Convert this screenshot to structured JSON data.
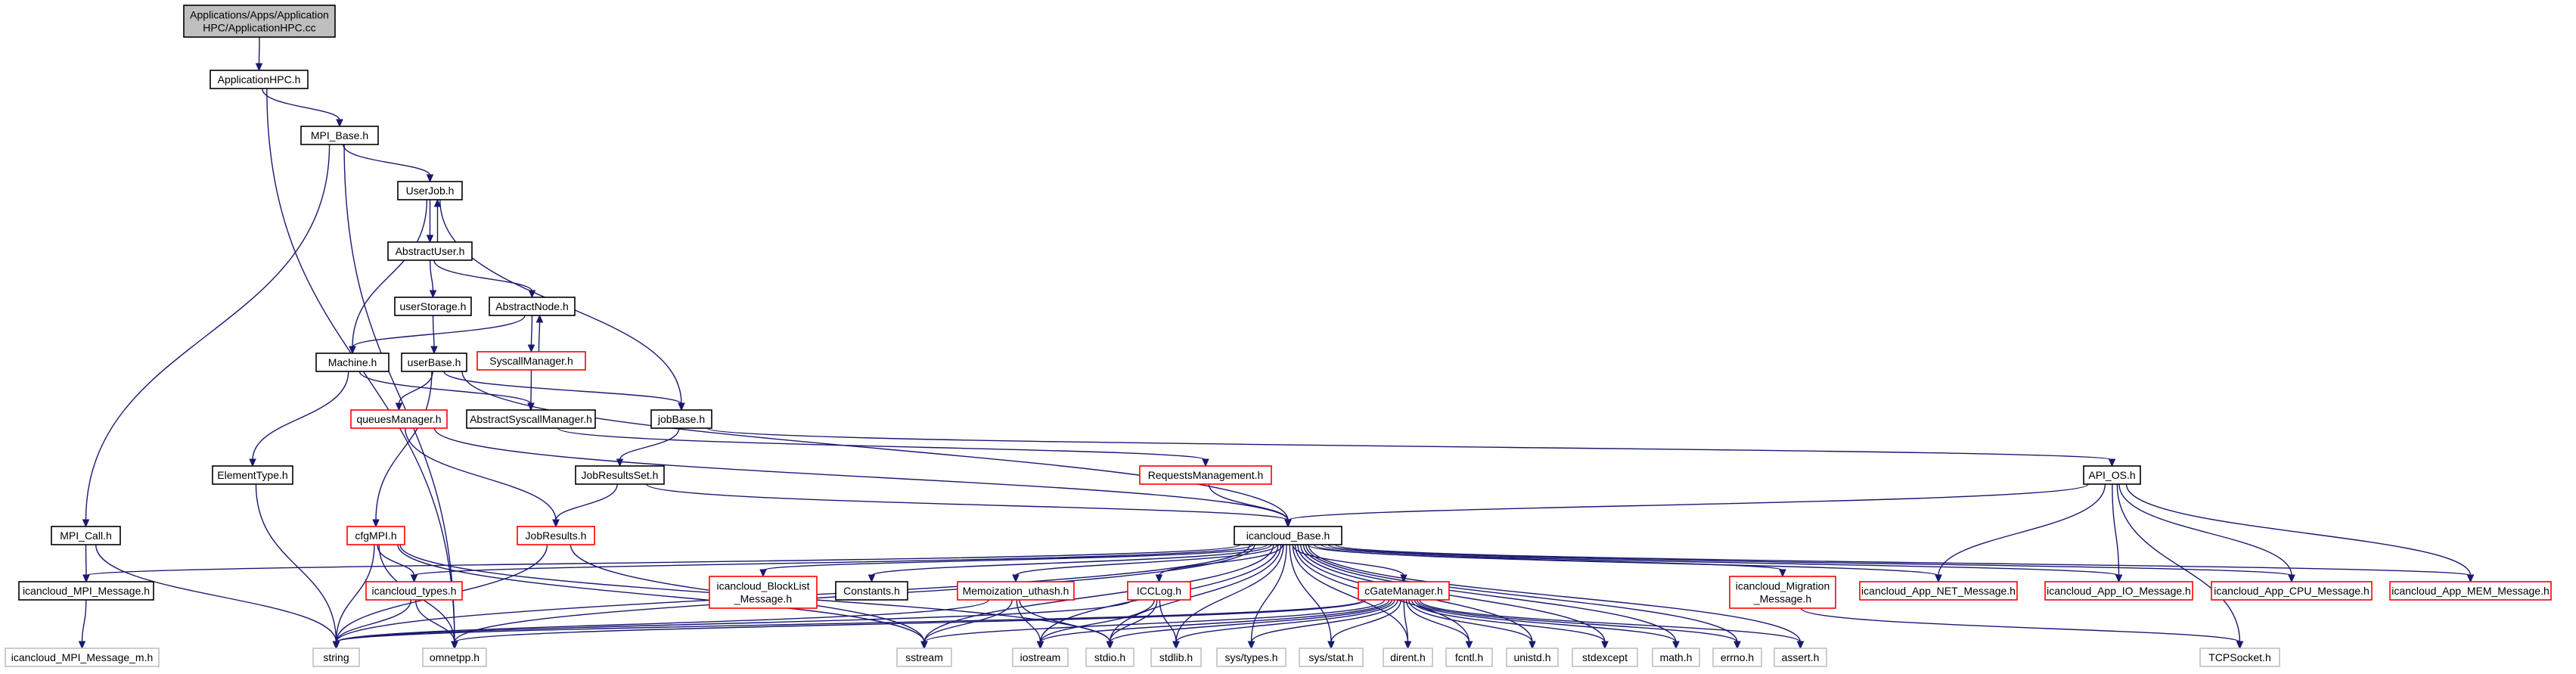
{
  "diagram": {
    "colors": {
      "edge": "#191970",
      "border_normal": "#000000",
      "border_truncated": "#ff0000",
      "border_leaf": "#bfbfbf",
      "fill_root": "#bfbfbf",
      "fill_normal": "#ffffff"
    },
    "nodes": [
      {
        "id": "root",
        "lines": [
          "Applications/Apps/Application",
          "HPC/ApplicationHPC.cc"
        ],
        "kind": "root"
      },
      {
        "id": "app_hpc",
        "lines": [
          "ApplicationHPC.h"
        ],
        "kind": "normal"
      },
      {
        "id": "mpi_base",
        "lines": [
          "MPI_Base.h"
        ],
        "kind": "normal"
      },
      {
        "id": "userjob",
        "lines": [
          "UserJob.h"
        ],
        "kind": "normal"
      },
      {
        "id": "abstractuser",
        "lines": [
          "AbstractUser.h"
        ],
        "kind": "normal"
      },
      {
        "id": "userstorage",
        "lines": [
          "userStorage.h"
        ],
        "kind": "normal"
      },
      {
        "id": "abstractnode",
        "lines": [
          "AbstractNode.h"
        ],
        "kind": "normal"
      },
      {
        "id": "syscallmanager",
        "lines": [
          "SyscallManager.h"
        ],
        "kind": "truncated"
      },
      {
        "id": "machine",
        "lines": [
          "Machine.h"
        ],
        "kind": "normal"
      },
      {
        "id": "userbase",
        "lines": [
          "userBase.h"
        ],
        "kind": "normal"
      },
      {
        "id": "queuesmanager",
        "lines": [
          "queuesManager.h"
        ],
        "kind": "truncated"
      },
      {
        "id": "abstractsyscall",
        "lines": [
          "AbstractSyscallManager.h"
        ],
        "kind": "normal"
      },
      {
        "id": "jobbase",
        "lines": [
          "jobBase.h"
        ],
        "kind": "normal"
      },
      {
        "id": "elementtype",
        "lines": [
          "ElementType.h"
        ],
        "kind": "normal"
      },
      {
        "id": "jobresultsset",
        "lines": [
          "JobResultsSet.h"
        ],
        "kind": "normal"
      },
      {
        "id": "requestsmgmt",
        "lines": [
          "RequestsManagement.h"
        ],
        "kind": "truncated"
      },
      {
        "id": "api_os",
        "lines": [
          "API_OS.h"
        ],
        "kind": "normal"
      },
      {
        "id": "mpi_call",
        "lines": [
          "MPI_Call.h"
        ],
        "kind": "normal"
      },
      {
        "id": "cfgmpi",
        "lines": [
          "cfgMPI.h"
        ],
        "kind": "truncated"
      },
      {
        "id": "jobresults",
        "lines": [
          "JobResults.h"
        ],
        "kind": "truncated"
      },
      {
        "id": "icancloud_base",
        "lines": [
          "icancloud_Base.h"
        ],
        "kind": "normal"
      },
      {
        "id": "mpi_message",
        "lines": [
          "icancloud_MPI_Message.h"
        ],
        "kind": "normal"
      },
      {
        "id": "icancloud_types",
        "lines": [
          "icancloud_types.h"
        ],
        "kind": "truncated"
      },
      {
        "id": "blocklist",
        "lines": [
          "icancloud_BlockList",
          "_Message.h"
        ],
        "kind": "truncated"
      },
      {
        "id": "constants",
        "lines": [
          "Constants.h"
        ],
        "kind": "normal"
      },
      {
        "id": "memoization",
        "lines": [
          "Memoization_uthash.h"
        ],
        "kind": "truncated"
      },
      {
        "id": "icclog",
        "lines": [
          "ICCLog.h"
        ],
        "kind": "truncated"
      },
      {
        "id": "cgatemanager",
        "lines": [
          "cGateManager.h"
        ],
        "kind": "truncated"
      },
      {
        "id": "migration",
        "lines": [
          "icancloud_Migration",
          "_Message.h"
        ],
        "kind": "truncated"
      },
      {
        "id": "net_msg",
        "lines": [
          "icancloud_App_NET_Message.h"
        ],
        "kind": "truncated"
      },
      {
        "id": "io_msg",
        "lines": [
          "icancloud_App_IO_Message.h"
        ],
        "kind": "truncated"
      },
      {
        "id": "cpu_msg",
        "lines": [
          "icancloud_App_CPU_Message.h"
        ],
        "kind": "truncated"
      },
      {
        "id": "mem_msg",
        "lines": [
          "icancloud_App_MEM_Message.h"
        ],
        "kind": "truncated"
      },
      {
        "id": "mpi_message_m",
        "lines": [
          "icancloud_MPI_Message_m.h"
        ],
        "kind": "leaf"
      },
      {
        "id": "string",
        "lines": [
          "string"
        ],
        "kind": "leaf"
      },
      {
        "id": "omnetpp",
        "lines": [
          "omnetpp.h"
        ],
        "kind": "leaf"
      },
      {
        "id": "sstream",
        "lines": [
          "sstream"
        ],
        "kind": "leaf"
      },
      {
        "id": "iostream",
        "lines": [
          "iostream"
        ],
        "kind": "leaf"
      },
      {
        "id": "stdio",
        "lines": [
          "stdio.h"
        ],
        "kind": "leaf"
      },
      {
        "id": "stdlib",
        "lines": [
          "stdlib.h"
        ],
        "kind": "leaf"
      },
      {
        "id": "systypes",
        "lines": [
          "sys/types.h"
        ],
        "kind": "leaf"
      },
      {
        "id": "sysstat",
        "lines": [
          "sys/stat.h"
        ],
        "kind": "leaf"
      },
      {
        "id": "dirent",
        "lines": [
          "dirent.h"
        ],
        "kind": "leaf"
      },
      {
        "id": "fcntl",
        "lines": [
          "fcntl.h"
        ],
        "kind": "leaf"
      },
      {
        "id": "unistd",
        "lines": [
          "unistd.h"
        ],
        "kind": "leaf"
      },
      {
        "id": "stdexcept",
        "lines": [
          "stdexcept"
        ],
        "kind": "leaf"
      },
      {
        "id": "math",
        "lines": [
          "math.h"
        ],
        "kind": "leaf"
      },
      {
        "id": "errno",
        "lines": [
          "errno.h"
        ],
        "kind": "leaf"
      },
      {
        "id": "assert",
        "lines": [
          "assert.h"
        ],
        "kind": "leaf"
      },
      {
        "id": "tcpsocket",
        "lines": [
          "TCPSocket.h"
        ],
        "kind": "leaf"
      }
    ],
    "edges": [
      [
        "root",
        "app_hpc"
      ],
      [
        "app_hpc",
        "mpi_base"
      ],
      [
        "app_hpc",
        "omnetpp"
      ],
      [
        "mpi_base",
        "userjob"
      ],
      [
        "mpi_base",
        "mpi_call"
      ],
      [
        "mpi_base",
        "omnetpp"
      ],
      [
        "userjob",
        "abstractuser"
      ],
      [
        "abstractuser",
        "userjob"
      ],
      [
        "userjob",
        "machine"
      ],
      [
        "userjob",
        "jobbase"
      ],
      [
        "abstractuser",
        "userstorage"
      ],
      [
        "abstractuser",
        "abstractnode"
      ],
      [
        "abstractnode",
        "syscallmanager"
      ],
      [
        "syscallmanager",
        "abstractnode"
      ],
      [
        "abstractnode",
        "machine"
      ],
      [
        "syscallmanager",
        "abstractsyscall"
      ],
      [
        "userstorage",
        "userbase"
      ],
      [
        "userbase",
        "queuesmanager"
      ],
      [
        "userbase",
        "jobbase"
      ],
      [
        "userbase",
        "cfgmpi"
      ],
      [
        "userbase",
        "icancloud_base"
      ],
      [
        "machine",
        "elementtype"
      ],
      [
        "machine",
        "abstractsyscall"
      ],
      [
        "abstractsyscall",
        "requestsmgmt"
      ],
      [
        "jobbase",
        "jobresultsset"
      ],
      [
        "jobbase",
        "api_os"
      ],
      [
        "queuesmanager",
        "jobresults"
      ],
      [
        "queuesmanager",
        "icancloud_base"
      ],
      [
        "elementtype",
        "string"
      ],
      [
        "jobresultsset",
        "jobresults"
      ],
      [
        "jobresultsset",
        "icancloud_base"
      ],
      [
        "requestsmgmt",
        "icancloud_base"
      ],
      [
        "api_os",
        "icancloud_base"
      ],
      [
        "api_os",
        "net_msg"
      ],
      [
        "api_os",
        "io_msg"
      ],
      [
        "api_os",
        "cpu_msg"
      ],
      [
        "api_os",
        "mem_msg"
      ],
      [
        "api_os",
        "tcpsocket"
      ],
      [
        "mpi_call",
        "mpi_message"
      ],
      [
        "mpi_call",
        "string"
      ],
      [
        "mpi_message",
        "mpi_message_m"
      ],
      [
        "cfgmpi",
        "icancloud_types"
      ],
      [
        "cfgmpi",
        "string"
      ],
      [
        "cfgmpi",
        "omnetpp"
      ],
      [
        "cfgmpi",
        "sstream"
      ],
      [
        "cfgmpi",
        "stdio"
      ],
      [
        "jobresults",
        "string"
      ],
      [
        "jobresults",
        "sstream"
      ],
      [
        "icancloud_base",
        "mpi_message"
      ],
      [
        "icancloud_base",
        "icancloud_types"
      ],
      [
        "icancloud_base",
        "blocklist"
      ],
      [
        "icancloud_base",
        "constants"
      ],
      [
        "icancloud_base",
        "memoization"
      ],
      [
        "icancloud_base",
        "icclog"
      ],
      [
        "icancloud_base",
        "cgatemanager"
      ],
      [
        "icancloud_base",
        "migration"
      ],
      [
        "icancloud_base",
        "net_msg"
      ],
      [
        "icancloud_base",
        "io_msg"
      ],
      [
        "icancloud_base",
        "cpu_msg"
      ],
      [
        "icancloud_base",
        "mem_msg"
      ],
      [
        "icancloud_base",
        "omnetpp"
      ],
      [
        "icancloud_base",
        "sstream"
      ],
      [
        "icancloud_base",
        "iostream"
      ],
      [
        "icancloud_base",
        "stdio"
      ],
      [
        "icancloud_base",
        "stdlib"
      ],
      [
        "icancloud_base",
        "systypes"
      ],
      [
        "icancloud_base",
        "sysstat"
      ],
      [
        "icancloud_base",
        "dirent"
      ],
      [
        "icancloud_base",
        "fcntl"
      ],
      [
        "icancloud_base",
        "unistd"
      ],
      [
        "icancloud_base",
        "stdexcept"
      ],
      [
        "icancloud_base",
        "math"
      ],
      [
        "icancloud_base",
        "errno"
      ],
      [
        "icancloud_base",
        "assert"
      ],
      [
        "icancloud_base",
        "string"
      ],
      [
        "icancloud_types",
        "string"
      ],
      [
        "icancloud_types",
        "omnetpp"
      ],
      [
        "memoization",
        "sstream"
      ],
      [
        "memoization",
        "iostream"
      ],
      [
        "memoization",
        "stdio"
      ],
      [
        "memoization",
        "string"
      ],
      [
        "icclog",
        "iostream"
      ],
      [
        "icclog",
        "stdio"
      ],
      [
        "icclog",
        "stdlib"
      ],
      [
        "icclog",
        "string"
      ],
      [
        "cgatemanager",
        "string"
      ],
      [
        "cgatemanager",
        "omnetpp"
      ],
      [
        "cgatemanager",
        "sstream"
      ],
      [
        "cgatemanager",
        "iostream"
      ],
      [
        "cgatemanager",
        "stdio"
      ],
      [
        "cgatemanager",
        "stdlib"
      ],
      [
        "cgatemanager",
        "systypes"
      ],
      [
        "cgatemanager",
        "sysstat"
      ],
      [
        "cgatemanager",
        "dirent"
      ],
      [
        "cgatemanager",
        "fcntl"
      ],
      [
        "cgatemanager",
        "unistd"
      ],
      [
        "cgatemanager",
        "stdexcept"
      ],
      [
        "cgatemanager",
        "math"
      ],
      [
        "cgatemanager",
        "errno"
      ],
      [
        "cgatemanager",
        "assert"
      ],
      [
        "migration",
        "tcpsocket"
      ]
    ]
  }
}
